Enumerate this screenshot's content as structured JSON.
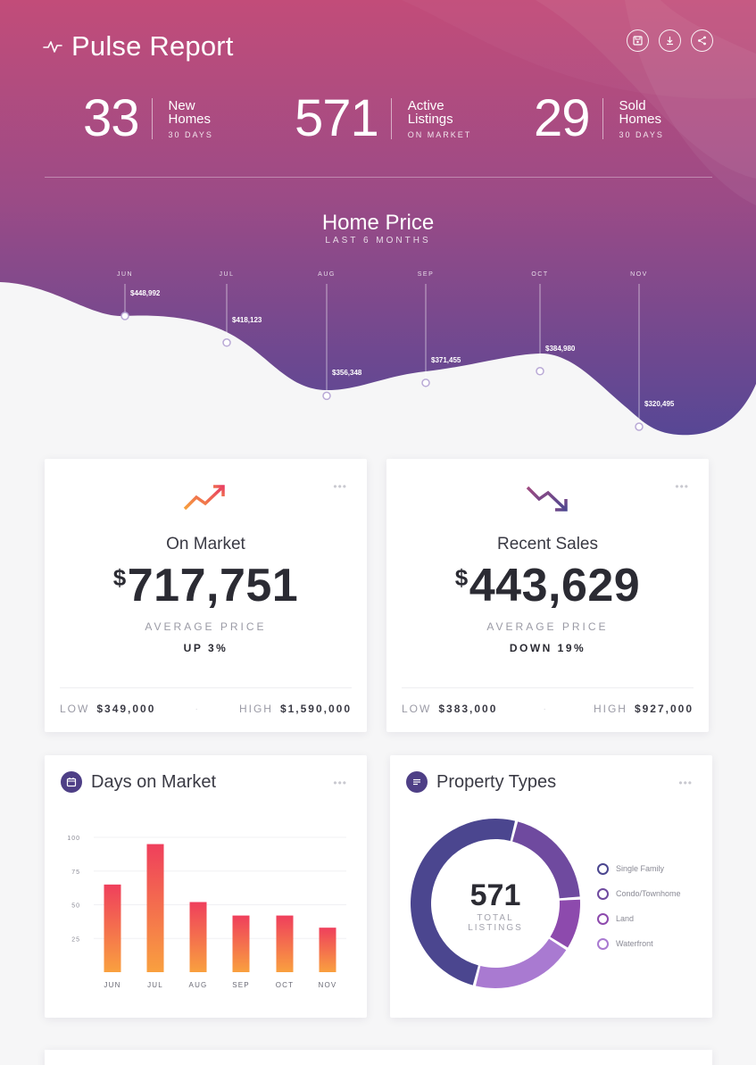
{
  "header": {
    "title": "Pulse Report",
    "actions": [
      {
        "icon": "save-icon"
      },
      {
        "icon": "download-icon"
      },
      {
        "icon": "share-icon"
      }
    ]
  },
  "stats": [
    {
      "value": "33",
      "line1": "New",
      "line2": "Homes",
      "line3": "30 DAYS"
    },
    {
      "value": "571",
      "line1": "Active",
      "line2": "Listings",
      "line3": "ON MARKET"
    },
    {
      "value": "29",
      "line1": "Sold",
      "line2": "Homes",
      "line3": "30 DAYS"
    }
  ],
  "home_price": {
    "title": "Home Price",
    "subtitle": "LAST 6 MONTHS",
    "points": [
      {
        "month": "JUN",
        "label": "$448,992",
        "value": 448992
      },
      {
        "month": "JUL",
        "label": "$418,123",
        "value": 418123
      },
      {
        "month": "AUG",
        "label": "$356,348",
        "value": 356348
      },
      {
        "month": "SEP",
        "label": "$371,455",
        "value": 371455
      },
      {
        "month": "OCT",
        "label": "$384,980",
        "value": 384980
      },
      {
        "month": "NOV",
        "label": "$320,495",
        "value": 320495
      }
    ]
  },
  "on_market": {
    "title": "On Market",
    "currency": "$",
    "price": "717,751",
    "caption": "AVERAGE PRICE",
    "change": "UP 3%",
    "low_label": "LOW",
    "low_value": "$349,000",
    "high_label": "HIGH",
    "high_value": "$1,590,000",
    "icon": "trending-up-icon"
  },
  "recent_sales": {
    "title": "Recent Sales",
    "currency": "$",
    "price": "443,629",
    "caption": "AVERAGE PRICE",
    "change": "DOWN 19%",
    "low_label": "LOW",
    "low_value": "$383,000",
    "high_label": "HIGH",
    "high_value": "$927,000",
    "icon": "trending-down-icon"
  },
  "days_on_market": {
    "title": "Days on Market",
    "icon": "calendar-icon"
  },
  "property_types": {
    "title": "Property Types",
    "icon": "list-icon",
    "total": "571",
    "total_label_1": "TOTAL",
    "total_label_2": "LISTINGS"
  },
  "chart_data": [
    {
      "type": "bar",
      "categories": [
        "JUN",
        "JUL",
        "AUG",
        "SEP",
        "OCT",
        "NOV"
      ],
      "values": [
        65,
        95,
        52,
        42,
        42,
        33
      ],
      "yticks": [
        25,
        50,
        75,
        100
      ],
      "ylim": [
        0,
        100
      ],
      "gradient": [
        "#f9a03f",
        "#ef3f5c"
      ]
    },
    {
      "type": "pie",
      "labels": [
        "Single Family",
        "Condo/Townhome",
        "Land",
        "Waterfront"
      ],
      "values": [
        50,
        20,
        10,
        20
      ],
      "colors": [
        "#4b468f",
        "#6f4a9f",
        "#8d4aad",
        "#a97ad1"
      ],
      "legend": "right"
    }
  ],
  "colors": {
    "hero_top": "#c04d7a",
    "hero_bottom": "#5a4794",
    "accent_purple": "#4e3f86"
  }
}
